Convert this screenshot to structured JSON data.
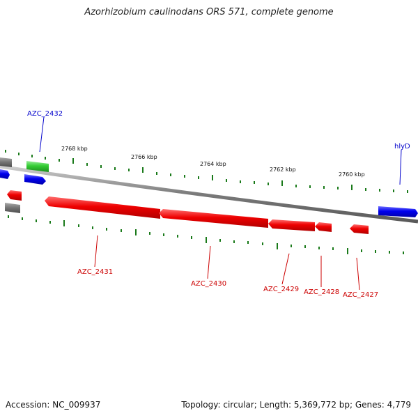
{
  "title": "Azorhizobium caulinodans ORS 571, complete genome",
  "footer": {
    "accession": "Accession: NC_009937",
    "summary": "Topology: circular; Length: 5,369,772 bp; Genes: 4,779"
  },
  "colors": {
    "forward_strand": "#0000ee",
    "reverse_strand": "#ee0000",
    "other": "#33cc33",
    "pseudo": "#777777",
    "backbone": "#888888",
    "ticks": "#1a7a1a"
  },
  "position_ticks": [
    "2768 kbp",
    "2766 kbp",
    "2764 kbp",
    "2762 kbp",
    "2760 kbp"
  ],
  "labels_above": [
    {
      "name": "AZC_2432",
      "color": "blue"
    },
    {
      "name": "hlyD",
      "color": "blue"
    }
  ],
  "labels_below": [
    {
      "name": "AZC_2431",
      "color": "red"
    },
    {
      "name": "AZC_2430",
      "color": "red"
    },
    {
      "name": "AZC_2429",
      "color": "red"
    },
    {
      "name": "AZC_2428",
      "color": "red"
    },
    {
      "name": "AZC_2427",
      "color": "red"
    }
  ]
}
